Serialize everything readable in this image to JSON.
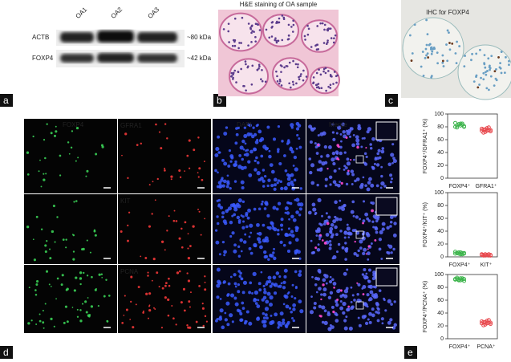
{
  "panel_labels": [
    "a",
    "b",
    "c",
    "d",
    "e"
  ],
  "blot": {
    "lanes": [
      "OA1",
      "OA2",
      "OA3"
    ],
    "rows": [
      {
        "name": "ACTB",
        "size": "~80 kDa"
      },
      {
        "name": "FOXP4",
        "size": "~42 kDa"
      }
    ]
  },
  "he_title": "H&E staining of OA sample",
  "ihc_title": "IHC for FOXP4",
  "fluorescence": {
    "columns": [
      "FOXP4",
      "DAPI",
      "Merge"
    ],
    "markers": [
      "GFRA1",
      "KIT",
      "PCNA"
    ]
  },
  "chart_data": [
    {
      "type": "strip",
      "ylabel": "FOXP4⁺/GFRA1⁺ (%)",
      "categories": [
        "FOXP4⁺",
        "GFRA1⁺"
      ],
      "colors": [
        "#3cb44b",
        "#e8474c"
      ],
      "groups": [
        [
          80,
          82,
          84,
          85,
          83,
          81,
          86,
          79,
          84,
          82,
          85,
          80
        ],
        [
          74,
          76,
          72,
          78,
          75,
          73,
          77,
          71,
          76,
          74,
          79,
          75
        ]
      ],
      "ylim": [
        0,
        100
      ],
      "yticks": [
        0,
        20,
        40,
        60,
        80,
        100
      ]
    },
    {
      "type": "strip",
      "ylabel": "FOXP4⁺/KIT⁺ (%)",
      "categories": [
        "FOXP4⁺",
        "KIT⁺"
      ],
      "colors": [
        "#3cb44b",
        "#e8474c"
      ],
      "groups": [
        [
          5,
          6,
          7,
          4,
          6,
          5,
          8,
          6,
          5,
          7,
          4,
          6
        ],
        [
          3,
          2,
          4,
          3,
          2,
          3,
          4,
          3,
          2,
          3,
          4,
          2
        ]
      ],
      "ylim": [
        0,
        100
      ],
      "yticks": [
        0,
        20,
        40,
        60,
        80,
        100
      ]
    },
    {
      "type": "strip",
      "ylabel": "FOXP4⁺/PCNA⁺ (%)",
      "categories": [
        "FOXP4⁺",
        "PCNA⁺"
      ],
      "colors": [
        "#3cb44b",
        "#e8474c"
      ],
      "groups": [
        [
          92,
          93,
          91,
          94,
          92,
          90,
          93,
          95,
          92,
          91,
          94,
          93
        ],
        [
          24,
          26,
          22,
          28,
          25,
          23,
          27,
          21,
          26,
          24,
          29,
          25
        ]
      ],
      "ylim": [
        0,
        100
      ],
      "yticks": [
        0,
        20,
        40,
        60,
        80,
        100
      ]
    }
  ]
}
